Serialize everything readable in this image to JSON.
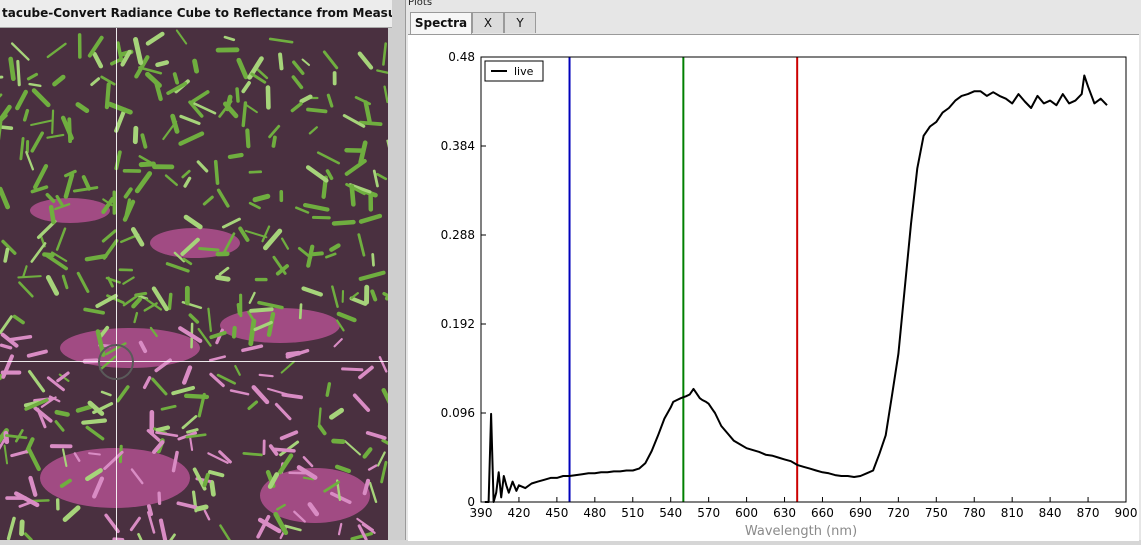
{
  "left_pane": {
    "title": "tacube-Convert Radiance Cube to Reflectance from Measured Referenc"
  },
  "right_pane": {
    "panel_label": "Plots",
    "tabs": [
      {
        "label": "Spectra",
        "active": true
      },
      {
        "label": "X",
        "active": false
      },
      {
        "label": "Y",
        "active": false
      }
    ]
  },
  "chart_data": {
    "type": "line",
    "xlabel": "Wavelength (nm)",
    "ylabel": "",
    "xlim": [
      390,
      900
    ],
    "ylim": [
      0,
      0.48
    ],
    "x_ticks": [
      "390",
      "420",
      "450",
      "480",
      "510",
      "540",
      "570",
      "600",
      "630",
      "660",
      "690",
      "720",
      "750",
      "780",
      "810",
      "840",
      "870",
      "900"
    ],
    "y_ticks": [
      "0",
      "0.096",
      "0.192",
      "0.288",
      "0.384",
      "0.48"
    ],
    "legend": {
      "position": "top-left",
      "entries": [
        "live"
      ]
    },
    "series": [
      {
        "name": "live",
        "color": "#000000",
        "x": [
          393,
          396,
          398,
          400,
          402,
          404,
          406,
          408,
          410,
          412,
          415,
          418,
          420,
          425,
          430,
          435,
          440,
          445,
          450,
          455,
          460,
          465,
          470,
          475,
          480,
          485,
          490,
          495,
          500,
          505,
          510,
          515,
          520,
          525,
          530,
          535,
          540,
          542,
          545,
          548,
          550,
          552,
          555,
          558,
          560,
          563,
          565,
          568,
          570,
          573,
          575,
          580,
          585,
          590,
          595,
          600,
          605,
          610,
          615,
          620,
          625,
          630,
          635,
          640,
          645,
          650,
          655,
          660,
          665,
          670,
          675,
          680,
          685,
          690,
          695,
          700,
          705,
          710,
          715,
          720,
          725,
          730,
          735,
          740,
          745,
          750,
          755,
          760,
          765,
          770,
          775,
          780,
          785,
          790,
          795,
          800,
          805,
          810,
          815,
          820,
          825,
          830,
          835,
          840,
          845,
          850,
          855,
          860,
          865,
          867,
          870,
          875,
          880,
          885
        ],
        "values": [
          0.0,
          0.0,
          0.095,
          0.0,
          0.01,
          0.032,
          0.005,
          0.028,
          0.018,
          0.01,
          0.022,
          0.012,
          0.018,
          0.015,
          0.02,
          0.022,
          0.024,
          0.026,
          0.026,
          0.028,
          0.028,
          0.029,
          0.03,
          0.031,
          0.031,
          0.032,
          0.032,
          0.033,
          0.033,
          0.034,
          0.034,
          0.036,
          0.042,
          0.055,
          0.072,
          0.09,
          0.102,
          0.108,
          0.11,
          0.112,
          0.113,
          0.114,
          0.116,
          0.122,
          0.118,
          0.112,
          0.11,
          0.108,
          0.106,
          0.1,
          0.096,
          0.082,
          0.074,
          0.066,
          0.062,
          0.058,
          0.056,
          0.054,
          0.051,
          0.05,
          0.048,
          0.046,
          0.044,
          0.04,
          0.038,
          0.036,
          0.034,
          0.032,
          0.031,
          0.029,
          0.028,
          0.028,
          0.027,
          0.028,
          0.031,
          0.034,
          0.052,
          0.072,
          0.115,
          0.16,
          0.23,
          0.3,
          0.36,
          0.395,
          0.405,
          0.41,
          0.42,
          0.425,
          0.433,
          0.438,
          0.44,
          0.443,
          0.443,
          0.438,
          0.442,
          0.438,
          0.435,
          0.43,
          0.44,
          0.432,
          0.425,
          0.438,
          0.43,
          0.433,
          0.428,
          0.44,
          0.43,
          0.433,
          0.44,
          0.46,
          0.448,
          0.43,
          0.435,
          0.428
        ]
      }
    ],
    "markers": [
      {
        "x": 460,
        "color": "#0000bb"
      },
      {
        "x": 550,
        "color": "#008000"
      },
      {
        "x": 640,
        "color": "#cc0000"
      }
    ]
  }
}
